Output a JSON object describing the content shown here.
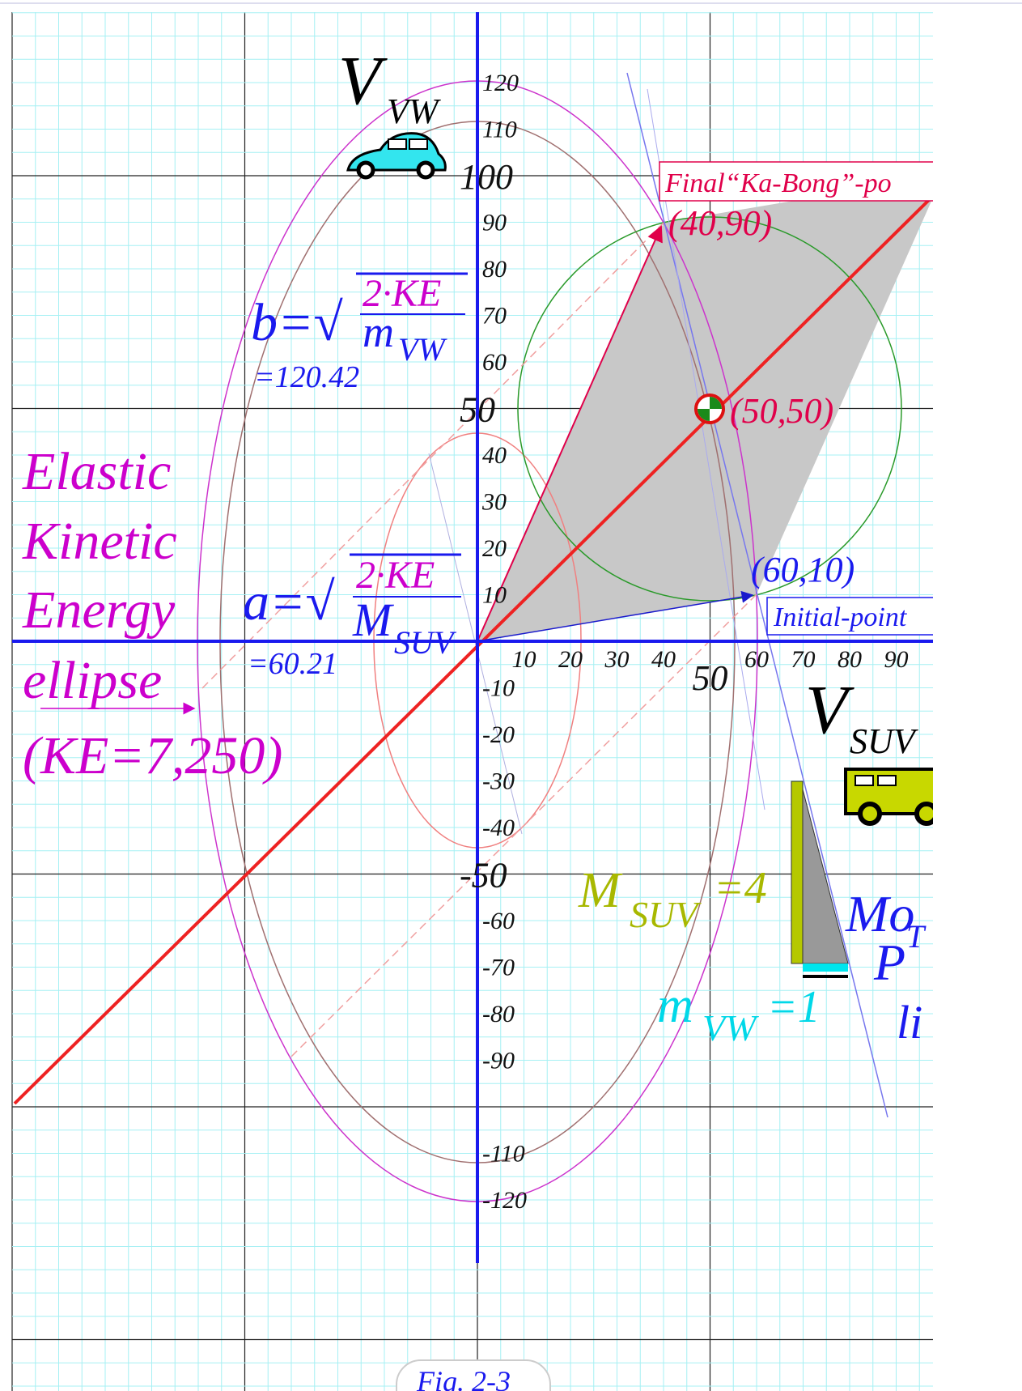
{
  "axes": {
    "x_tick_labels": [
      "10",
      "20",
      "30",
      "40",
      "50",
      "60",
      "70",
      "80",
      "90"
    ],
    "y_tick_labels": [
      "120",
      "110",
      "100",
      "90",
      "80",
      "70",
      "60",
      "50",
      "40",
      "30",
      "20",
      "10",
      "-10",
      "-20",
      "-30",
      "-40",
      "-50",
      "-60",
      "-70",
      "-80",
      "-90",
      "-110",
      "-120"
    ],
    "y_axis_label": {
      "main": "V",
      "sub": "VW"
    },
    "x_axis_label": {
      "main": "V",
      "sub": "SUV"
    }
  },
  "formula_b": {
    "lhs": "b=√",
    "numerator": "2·KE",
    "denominator": "m",
    "subscript": "VW",
    "value": "=120.42"
  },
  "formula_a": {
    "lhs": "a=√",
    "numerator": "2·KE",
    "denominator": "M",
    "subscript": "SUV",
    "value": "=60.21"
  },
  "ellipse_label": [
    "Elastic",
    "Kinetic",
    "Energy",
    "ellipse",
    "(KE=7,250)"
  ],
  "points": {
    "final_box": "Final“Ka-Bong”-po",
    "final": "(40,90)",
    "center": "(50,50)",
    "initial": "(60,10)",
    "initial_box": "Initial-point"
  },
  "masses": {
    "suv": {
      "main": "M",
      "sub": "SUV",
      "value": "=4"
    },
    "vw": {
      "main": "m",
      "sub": "VW",
      "value": "=1"
    }
  },
  "momentum_label": {
    "line1": "Mo",
    "p": "P",
    "sup": "T",
    "line3": "li"
  },
  "caption": "Fig. 2-3"
}
